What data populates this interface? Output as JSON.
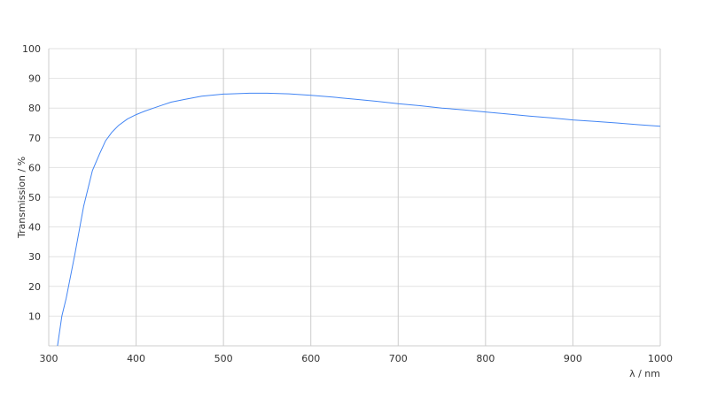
{
  "chart_data": {
    "type": "line",
    "title": "",
    "xlabel": "λ / nm",
    "ylabel": "Transmission / %",
    "xlim": [
      300,
      1000
    ],
    "ylim": [
      0,
      100
    ],
    "xticks": [
      300,
      400,
      500,
      600,
      700,
      800,
      900,
      1000
    ],
    "yticks": [
      10,
      20,
      30,
      40,
      50,
      60,
      70,
      80,
      90,
      100
    ],
    "grid": true,
    "line_color": "#4285f4",
    "series": [
      {
        "x": [
          310,
          315,
          320,
          330,
          340,
          350,
          358,
          365,
          372,
          380,
          390,
          400,
          410,
          420,
          430,
          440,
          455,
          475,
          500,
          530,
          550,
          575,
          600,
          625,
          650,
          675,
          700,
          725,
          750,
          775,
          800,
          825,
          850,
          875,
          900,
          925,
          950,
          975,
          1000
        ],
        "y": [
          0,
          10,
          16,
          31,
          47,
          59,
          64.5,
          69,
          71.8,
          74.2,
          76.3,
          77.8,
          79,
          80,
          81,
          82,
          82.9,
          84,
          84.7,
          85,
          85,
          84.8,
          84.3,
          83.7,
          83,
          82.3,
          81.5,
          80.8,
          80,
          79.4,
          78.7,
          78,
          77.3,
          76.7,
          76,
          75.5,
          75,
          74.4,
          73.9
        ]
      }
    ]
  }
}
